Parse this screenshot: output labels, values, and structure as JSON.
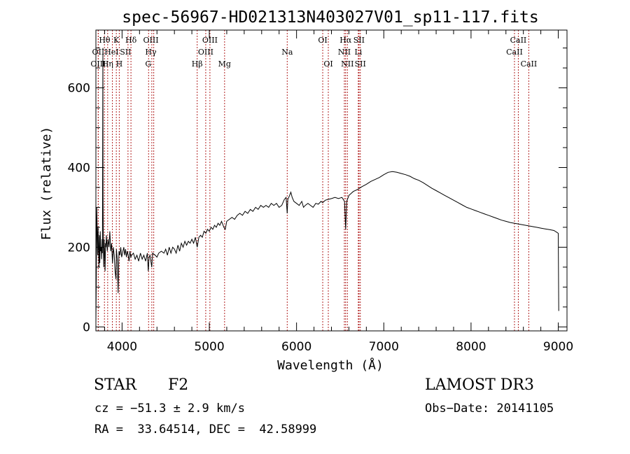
{
  "chart_data": {
    "type": "line",
    "title": "spec-56967-HD021313N403027V01_sp11-117.fits",
    "xlabel": "Wavelength (Å)",
    "ylabel": "Flux (relative)",
    "xlim": [
      3700,
      9100
    ],
    "ylim": [
      -10,
      745
    ],
    "x_ticks": [
      4000,
      5000,
      6000,
      7000,
      8000,
      9000
    ],
    "y_ticks": [
      0,
      200,
      400,
      600
    ],
    "grid": false,
    "series": [
      {
        "values": [
          [
            3700,
            10
          ],
          [
            3705,
            130
          ],
          [
            3710,
            300
          ],
          [
            3715,
            240
          ],
          [
            3720,
            180
          ],
          [
            3725,
            250
          ],
          [
            3730,
            200
          ],
          [
            3735,
            150
          ],
          [
            3740,
            230
          ],
          [
            3745,
            160
          ],
          [
            3750,
            240
          ],
          [
            3755,
            190
          ],
          [
            3760,
            200
          ],
          [
            3765,
            170
          ],
          [
            3770,
            220
          ],
          [
            3775,
            185
          ],
          [
            3780,
            700
          ],
          [
            3782,
            330
          ],
          [
            3785,
            210
          ],
          [
            3790,
            150
          ],
          [
            3795,
            220
          ],
          [
            3800,
            180
          ],
          [
            3805,
            140
          ],
          [
            3810,
            210
          ],
          [
            3815,
            200
          ],
          [
            3820,
            230
          ],
          [
            3830,
            190
          ],
          [
            3840,
            220
          ],
          [
            3850,
            200
          ],
          [
            3860,
            240
          ],
          [
            3870,
            190
          ],
          [
            3880,
            210
          ],
          [
            3890,
            160
          ],
          [
            3900,
            200
          ],
          [
            3910,
            180
          ],
          [
            3920,
            140
          ],
          [
            3930,
            120
          ],
          [
            3935,
            195
          ],
          [
            3945,
            170
          ],
          [
            3955,
            85
          ],
          [
            3960,
            150
          ],
          [
            3965,
            190
          ],
          [
            3975,
            180
          ],
          [
            3985,
            200
          ],
          [
            3995,
            175
          ],
          [
            4010,
            190
          ],
          [
            4020,
            200
          ],
          [
            4030,
            180
          ],
          [
            4040,
            195
          ],
          [
            4050,
            175
          ],
          [
            4060,
            190
          ],
          [
            4070,
            180
          ],
          [
            4080,
            165
          ],
          [
            4090,
            190
          ],
          [
            4100,
            175
          ],
          [
            4110,
            180
          ],
          [
            4130,
            185
          ],
          [
            4150,
            170
          ],
          [
            4170,
            180
          ],
          [
            4190,
            165
          ],
          [
            4210,
            185
          ],
          [
            4230,
            170
          ],
          [
            4250,
            180
          ],
          [
            4270,
            165
          ],
          [
            4290,
            185
          ],
          [
            4300,
            140
          ],
          [
            4310,
            175
          ],
          [
            4320,
            180
          ],
          [
            4340,
            150
          ],
          [
            4350,
            185
          ],
          [
            4380,
            180
          ],
          [
            4400,
            175
          ],
          [
            4420,
            185
          ],
          [
            4450,
            190
          ],
          [
            4480,
            185
          ],
          [
            4500,
            195
          ],
          [
            4520,
            180
          ],
          [
            4540,
            200
          ],
          [
            4560,
            185
          ],
          [
            4580,
            200
          ],
          [
            4600,
            195
          ],
          [
            4620,
            185
          ],
          [
            4640,
            205
          ],
          [
            4660,
            190
          ],
          [
            4680,
            210
          ],
          [
            4700,
            200
          ],
          [
            4720,
            215
          ],
          [
            4740,
            205
          ],
          [
            4760,
            215
          ],
          [
            4780,
            210
          ],
          [
            4800,
            220
          ],
          [
            4820,
            210
          ],
          [
            4840,
            225
          ],
          [
            4861,
            200
          ],
          [
            4880,
            225
          ],
          [
            4900,
            230
          ],
          [
            4920,
            225
          ],
          [
            4940,
            240
          ],
          [
            4960,
            235
          ],
          [
            4980,
            245
          ],
          [
            5000,
            240
          ],
          [
            5020,
            250
          ],
          [
            5040,
            245
          ],
          [
            5060,
            255
          ],
          [
            5080,
            250
          ],
          [
            5100,
            260
          ],
          [
            5120,
            255
          ],
          [
            5140,
            265
          ],
          [
            5167,
            250
          ],
          [
            5183,
            245
          ],
          [
            5200,
            265
          ],
          [
            5230,
            270
          ],
          [
            5260,
            275
          ],
          [
            5290,
            270
          ],
          [
            5320,
            280
          ],
          [
            5350,
            285
          ],
          [
            5380,
            280
          ],
          [
            5410,
            290
          ],
          [
            5440,
            285
          ],
          [
            5470,
            295
          ],
          [
            5500,
            290
          ],
          [
            5530,
            300
          ],
          [
            5560,
            295
          ],
          [
            5590,
            305
          ],
          [
            5620,
            300
          ],
          [
            5650,
            305
          ],
          [
            5680,
            300
          ],
          [
            5710,
            310
          ],
          [
            5740,
            305
          ],
          [
            5770,
            310
          ],
          [
            5800,
            300
          ],
          [
            5830,
            305
          ],
          [
            5860,
            320
          ],
          [
            5880,
            325
          ],
          [
            5893,
            285
          ],
          [
            5900,
            320
          ],
          [
            5920,
            330
          ],
          [
            5935,
            338
          ],
          [
            5950,
            325
          ],
          [
            5970,
            315
          ],
          [
            6000,
            310
          ],
          [
            6030,
            305
          ],
          [
            6060,
            315
          ],
          [
            6080,
            300
          ],
          [
            6100,
            305
          ],
          [
            6130,
            310
          ],
          [
            6160,
            305
          ],
          [
            6190,
            300
          ],
          [
            6220,
            310
          ],
          [
            6250,
            308
          ],
          [
            6280,
            315
          ],
          [
            6300,
            312
          ],
          [
            6330,
            318
          ],
          [
            6360,
            320
          ],
          [
            6400,
            322
          ],
          [
            6440,
            325
          ],
          [
            6480,
            322
          ],
          [
            6520,
            325
          ],
          [
            6550,
            315
          ],
          [
            6563,
            245
          ],
          [
            6575,
            315
          ],
          [
            6600,
            330
          ],
          [
            6650,
            340
          ],
          [
            6700,
            345
          ],
          [
            6750,
            352
          ],
          [
            6800,
            358
          ],
          [
            6850,
            365
          ],
          [
            6900,
            370
          ],
          [
            6950,
            375
          ],
          [
            7000,
            382
          ],
          [
            7050,
            388
          ],
          [
            7100,
            390
          ],
          [
            7150,
            388
          ],
          [
            7200,
            385
          ],
          [
            7250,
            382
          ],
          [
            7300,
            378
          ],
          [
            7350,
            372
          ],
          [
            7400,
            368
          ],
          [
            7450,
            362
          ],
          [
            7500,
            355
          ],
          [
            7550,
            348
          ],
          [
            7600,
            342
          ],
          [
            7650,
            336
          ],
          [
            7700,
            330
          ],
          [
            7750,
            324
          ],
          [
            7800,
            318
          ],
          [
            7850,
            312
          ],
          [
            7900,
            306
          ],
          [
            7950,
            300
          ],
          [
            8000,
            296
          ],
          [
            8050,
            292
          ],
          [
            8100,
            288
          ],
          [
            8150,
            284
          ],
          [
            8200,
            280
          ],
          [
            8250,
            276
          ],
          [
            8300,
            272
          ],
          [
            8350,
            268
          ],
          [
            8400,
            265
          ],
          [
            8450,
            262
          ],
          [
            8500,
            260
          ],
          [
            8550,
            258
          ],
          [
            8600,
            256
          ],
          [
            8650,
            254
          ],
          [
            8700,
            252
          ],
          [
            8750,
            250
          ],
          [
            8800,
            248
          ],
          [
            8850,
            246
          ],
          [
            8900,
            244
          ],
          [
            8950,
            242
          ],
          [
            8980,
            238
          ],
          [
            9000,
            235
          ],
          [
            9005,
            40
          ]
        ]
      }
    ],
    "lines": [
      {
        "label": "Hθ",
        "x": 3798,
        "row": 1,
        "label_x": 3800
      },
      {
        "label": "OII",
        "x": 3727,
        "row": 2,
        "label_x": 3727
      },
      {
        "label": "OIII",
        "x": 3727,
        "row": 3,
        "label_x": 3727
      },
      {
        "label": "Hη",
        "x": 3835,
        "row": 3,
        "label_x": 3835
      },
      {
        "label": "HeI",
        "x": 3889,
        "row": 2,
        "label_x": 3880
      },
      {
        "label": "K",
        "x": 3934,
        "row": 1,
        "label_x": 3934
      },
      {
        "label": "H",
        "x": 3968,
        "row": 3,
        "label_x": 3968
      },
      {
        "label": "SII",
        "x": 4068,
        "row": 2,
        "label_x": 4040
      },
      {
        "label": "Hδ",
        "x": 4102,
        "row": 1,
        "label_x": 4102
      },
      {
        "label": "OIII",
        "x": 4363,
        "row": 1,
        "label_x": 4330
      },
      {
        "label": "Hγ",
        "x": 4341,
        "row": 2,
        "label_x": 4330
      },
      {
        "label": "G",
        "x": 4304,
        "row": 3,
        "label_x": 4300
      },
      {
        "label": "Hβ",
        "x": 4861,
        "row": 3,
        "label_x": 4861
      },
      {
        "label": "OIII",
        "x": 5007,
        "row": 1,
        "label_x": 5007
      },
      {
        "label": "OIII",
        "x": 4959,
        "row": 2,
        "label_x": 4959
      },
      {
        "label": "Mg",
        "x": 5175,
        "row": 3,
        "label_x": 5175
      },
      {
        "label": "Na",
        "x": 5893,
        "row": 2,
        "label_x": 5893
      },
      {
        "label": "OI",
        "x": 6300,
        "row": 1,
        "label_x": 6300
      },
      {
        "label": "OI",
        "x": 6364,
        "row": 3,
        "label_x": 6364
      },
      {
        "label": "Hα",
        "x": 6563,
        "row": 1,
        "label_x": 6563
      },
      {
        "label": "NII",
        "x": 6548,
        "row": 2,
        "label_x": 6548
      },
      {
        "label": "NII",
        "x": 6583,
        "row": 3,
        "label_x": 6583
      },
      {
        "label": "SII",
        "x": 6716,
        "row": 1,
        "label_x": 6716
      },
      {
        "label": "Li",
        "x": 6708,
        "row": 2,
        "label_x": 6708
      },
      {
        "label": "SII",
        "x": 6731,
        "row": 3,
        "label_x": 6731
      },
      {
        "label": "CaII",
        "x": 8542,
        "row": 1,
        "label_x": 8542
      },
      {
        "label": "CaII",
        "x": 8498,
        "row": 2,
        "label_x": 8498
      },
      {
        "label": "CaII",
        "x": 8662,
        "row": 3,
        "label_x": 8662
      }
    ],
    "line_color": "#b22222"
  },
  "info": {
    "object_type": "STAR",
    "subclass": "F2",
    "survey": "LAMOST DR3",
    "cz": "cz = −51.3 ± 2.9 km/s",
    "obs_date": "Obs−Date: 20141105",
    "coords": "RA =  33.64514, DEC =  42.58999"
  }
}
